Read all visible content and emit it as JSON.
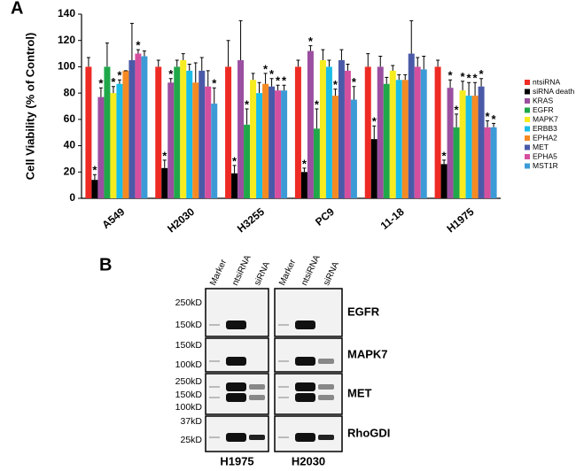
{
  "chart_data": {
    "type": "bar",
    "panel_label": "A",
    "y_label": "Cell Viability (% of Control)",
    "categories": [
      "A549",
      "H2030",
      "H3255",
      "PC9",
      "11-18",
      "H1975"
    ],
    "ylim": [
      0,
      140
    ],
    "yticks": [
      0,
      20,
      40,
      60,
      80,
      100,
      120,
      140
    ],
    "marker": "*",
    "series": [
      {
        "name": "ntsiRNA",
        "color": "#ee2a24",
        "values": [
          100,
          100,
          100,
          100,
          100,
          100
        ],
        "errors": [
          7,
          5,
          20,
          5,
          10,
          5
        ],
        "marked": [
          false,
          false,
          false,
          false,
          false,
          false
        ]
      },
      {
        "name": "siRNA death",
        "color": "#000000",
        "values": [
          14,
          23,
          19,
          20,
          45,
          26
        ],
        "errors": [
          4,
          6,
          6,
          3,
          10,
          3
        ],
        "marked": [
          true,
          true,
          true,
          true,
          true,
          true
        ]
      },
      {
        "name": "KRAS",
        "color": "#9b4fa0",
        "values": [
          77,
          88,
          105,
          112,
          100,
          84
        ],
        "errors": [
          7,
          3,
          30,
          4,
          8,
          6
        ],
        "marked": [
          true,
          true,
          false,
          true,
          false,
          true
        ]
      },
      {
        "name": "EGFR",
        "color": "#1fa84a",
        "values": [
          100,
          100,
          56,
          53,
          87,
          54
        ],
        "errors": [
          18,
          5,
          12,
          15,
          5,
          10
        ],
        "marked": [
          false,
          false,
          true,
          true,
          false,
          true
        ]
      },
      {
        "name": "MAPK7",
        "color": "#f6ec1e",
        "values": [
          80,
          105,
          90,
          105,
          97,
          82
        ],
        "errors": [
          5,
          5,
          5,
          8,
          4,
          7
        ],
        "marked": [
          true,
          false,
          false,
          false,
          false,
          true
        ]
      },
      {
        "name": "ERBB3",
        "color": "#1bbde8",
        "values": [
          87,
          97,
          80,
          100,
          90,
          78
        ],
        "errors": [
          3,
          5,
          8,
          5,
          4,
          10
        ],
        "marked": [
          true,
          false,
          false,
          false,
          false,
          true
        ]
      },
      {
        "name": "EPHA2",
        "color": "#f58a23",
        "values": [
          97,
          88,
          87,
          78,
          90,
          78
        ],
        "errors": [
          0,
          15,
          8,
          5,
          4,
          10
        ],
        "marked": [
          false,
          false,
          true,
          true,
          false,
          true
        ]
      },
      {
        "name": "MET",
        "color": "#4a5aa8",
        "values": [
          105,
          97,
          85,
          105,
          110,
          85
        ],
        "errors": [
          28,
          10,
          6,
          8,
          25,
          6
        ],
        "marked": [
          false,
          false,
          true,
          false,
          false,
          true
        ]
      },
      {
        "name": "EPHA5",
        "color": "#d54f9f",
        "values": [
          110,
          85,
          82,
          97,
          100,
          54
        ],
        "errors": [
          3,
          12,
          4,
          5,
          7,
          5
        ],
        "marked": [
          true,
          false,
          true,
          false,
          false,
          true
        ]
      },
      {
        "name": "MST1R",
        "color": "#3c9bd6",
        "values": [
          108,
          72,
          82,
          75,
          98,
          54
        ],
        "errors": [
          4,
          12,
          4,
          10,
          10,
          3
        ],
        "marked": [
          false,
          true,
          true,
          true,
          false,
          true
        ]
      }
    ]
  },
  "panel_b": {
    "label": "B",
    "lanes": [
      "Marker",
      "ntsiRNA",
      "siRNA",
      "Marker",
      "ntsiRNA",
      "siRNA"
    ],
    "rows": [
      {
        "protein": "EGFR",
        "sizes": [
          "250kD",
          "150kD"
        ]
      },
      {
        "protein": "MAPK7",
        "sizes": [
          "150kD",
          "100kD"
        ]
      },
      {
        "protein": "MET",
        "sizes": [
          "250kD",
          "150kD",
          "100kD"
        ]
      },
      {
        "protein": "RhoGDI",
        "sizes": [
          "37kD",
          "25kD"
        ]
      }
    ],
    "cell_lines": [
      "H1975",
      "H2030"
    ]
  }
}
